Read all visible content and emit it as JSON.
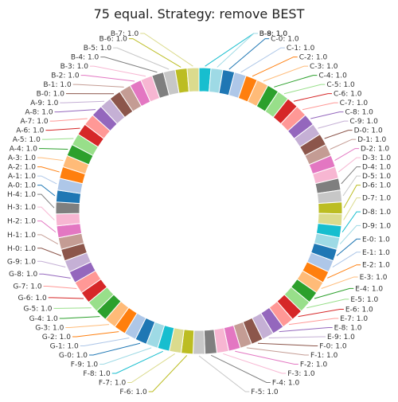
{
  "chart_data": {
    "type": "pie",
    "title": "75 equal. Strategy: remove BEST",
    "hole": true,
    "start": "top",
    "direction": "clockwise",
    "slices": [
      {
        "label": "B-8: 1.0",
        "value": 1.0,
        "color": "#17becf"
      },
      {
        "label": "B-9: 1.0",
        "value": 1.0,
        "color": "#9edae5"
      },
      {
        "label": "C-0: 1.0",
        "value": 1.0,
        "color": "#1f77b4"
      },
      {
        "label": "C-1: 1.0",
        "value": 1.0,
        "color": "#aec7e8"
      },
      {
        "label": "C-2: 1.0",
        "value": 1.0,
        "color": "#ff7f0e"
      },
      {
        "label": "C-3: 1.0",
        "value": 1.0,
        "color": "#ffbb78"
      },
      {
        "label": "C-4: 1.0",
        "value": 1.0,
        "color": "#2ca02c"
      },
      {
        "label": "C-5: 1.0",
        "value": 1.0,
        "color": "#98df8a"
      },
      {
        "label": "C-6: 1.0",
        "value": 1.0,
        "color": "#d62728"
      },
      {
        "label": "C-7: 1.0",
        "value": 1.0,
        "color": "#ff9896"
      },
      {
        "label": "C-8: 1.0",
        "value": 1.0,
        "color": "#9467bd"
      },
      {
        "label": "C-9: 1.0",
        "value": 1.0,
        "color": "#c5b0d5"
      },
      {
        "label": "D-0: 1.0",
        "value": 1.0,
        "color": "#8c564b"
      },
      {
        "label": "D-1: 1.0",
        "value": 1.0,
        "color": "#c49c94"
      },
      {
        "label": "D-2: 1.0",
        "value": 1.0,
        "color": "#e377c2"
      },
      {
        "label": "D-3: 1.0",
        "value": 1.0,
        "color": "#f7b6d2"
      },
      {
        "label": "D-4: 1.0",
        "value": 1.0,
        "color": "#7f7f7f"
      },
      {
        "label": "D-5: 1.0",
        "value": 1.0,
        "color": "#c7c7c7"
      },
      {
        "label": "D-6: 1.0",
        "value": 1.0,
        "color": "#bcbd22"
      },
      {
        "label": "D-7: 1.0",
        "value": 1.0,
        "color": "#dbdb8d"
      },
      {
        "label": "D-8: 1.0",
        "value": 1.0,
        "color": "#17becf"
      },
      {
        "label": "D-9: 1.0",
        "value": 1.0,
        "color": "#9edae5"
      },
      {
        "label": "E-0: 1.0",
        "value": 1.0,
        "color": "#1f77b4"
      },
      {
        "label": "E-1: 1.0",
        "value": 1.0,
        "color": "#aec7e8"
      },
      {
        "label": "E-2: 1.0",
        "value": 1.0,
        "color": "#ff7f0e"
      },
      {
        "label": "E-3: 1.0",
        "value": 1.0,
        "color": "#ffbb78"
      },
      {
        "label": "E-4: 1.0",
        "value": 1.0,
        "color": "#2ca02c"
      },
      {
        "label": "E-5: 1.0",
        "value": 1.0,
        "color": "#98df8a"
      },
      {
        "label": "E-6: 1.0",
        "value": 1.0,
        "color": "#d62728"
      },
      {
        "label": "E-7: 1.0",
        "value": 1.0,
        "color": "#ff9896"
      },
      {
        "label": "E-8: 1.0",
        "value": 1.0,
        "color": "#9467bd"
      },
      {
        "label": "E-9: 1.0",
        "value": 1.0,
        "color": "#c5b0d5"
      },
      {
        "label": "F-0: 1.0",
        "value": 1.0,
        "color": "#8c564b"
      },
      {
        "label": "F-1: 1.0",
        "value": 1.0,
        "color": "#c49c94"
      },
      {
        "label": "F-2: 1.0",
        "value": 1.0,
        "color": "#e377c2"
      },
      {
        "label": "F-3: 1.0",
        "value": 1.0,
        "color": "#f7b6d2"
      },
      {
        "label": "F-4: 1.0",
        "value": 1.0,
        "color": "#7f7f7f"
      },
      {
        "label": "F-5: 1.0",
        "value": 1.0,
        "color": "#c7c7c7"
      },
      {
        "label": "F-6: 1.0",
        "value": 1.0,
        "color": "#bcbd22"
      },
      {
        "label": "F-7: 1.0",
        "value": 1.0,
        "color": "#dbdb8d"
      },
      {
        "label": "F-8: 1.0",
        "value": 1.0,
        "color": "#17becf"
      },
      {
        "label": "F-9: 1.0",
        "value": 1.0,
        "color": "#9edae5"
      },
      {
        "label": "G-0: 1.0",
        "value": 1.0,
        "color": "#1f77b4"
      },
      {
        "label": "G-1: 1.0",
        "value": 1.0,
        "color": "#aec7e8"
      },
      {
        "label": "G-2: 1.0",
        "value": 1.0,
        "color": "#ff7f0e"
      },
      {
        "label": "G-3: 1.0",
        "value": 1.0,
        "color": "#ffbb78"
      },
      {
        "label": "G-4: 1.0",
        "value": 1.0,
        "color": "#2ca02c"
      },
      {
        "label": "G-5: 1.0",
        "value": 1.0,
        "color": "#98df8a"
      },
      {
        "label": "G-6: 1.0",
        "value": 1.0,
        "color": "#d62728"
      },
      {
        "label": "G-7: 1.0",
        "value": 1.0,
        "color": "#ff9896"
      },
      {
        "label": "G-8: 1.0",
        "value": 1.0,
        "color": "#9467bd"
      },
      {
        "label": "G-9: 1.0",
        "value": 1.0,
        "color": "#c5b0d5"
      },
      {
        "label": "H-0: 1.0",
        "value": 1.0,
        "color": "#8c564b"
      },
      {
        "label": "H-1: 1.0",
        "value": 1.0,
        "color": "#c49c94"
      },
      {
        "label": "H-2: 1.0",
        "value": 1.0,
        "color": "#e377c2"
      },
      {
        "label": "H-3: 1.0",
        "value": 1.0,
        "color": "#f7b6d2"
      },
      {
        "label": "H-4: 1.0",
        "value": 1.0,
        "color": "#7f7f7f"
      },
      {
        "label": "A-0: 1.0",
        "value": 1.0,
        "color": "#1f77b4"
      },
      {
        "label": "A-1: 1.0",
        "value": 1.0,
        "color": "#aec7e8"
      },
      {
        "label": "A-2: 1.0",
        "value": 1.0,
        "color": "#ff7f0e"
      },
      {
        "label": "A-3: 1.0",
        "value": 1.0,
        "color": "#ffbb78"
      },
      {
        "label": "A-4: 1.0",
        "value": 1.0,
        "color": "#2ca02c"
      },
      {
        "label": "A-5: 1.0",
        "value": 1.0,
        "color": "#98df8a"
      },
      {
        "label": "A-6: 1.0",
        "value": 1.0,
        "color": "#d62728"
      },
      {
        "label": "A-7: 1.0",
        "value": 1.0,
        "color": "#ff9896"
      },
      {
        "label": "A-8: 1.0",
        "value": 1.0,
        "color": "#9467bd"
      },
      {
        "label": "A-9: 1.0",
        "value": 1.0,
        "color": "#c5b0d5"
      },
      {
        "label": "B-0: 1.0",
        "value": 1.0,
        "color": "#8c564b"
      },
      {
        "label": "B-1: 1.0",
        "value": 1.0,
        "color": "#c49c94"
      },
      {
        "label": "B-2: 1.0",
        "value": 1.0,
        "color": "#e377c2"
      },
      {
        "label": "B-3: 1.0",
        "value": 1.0,
        "color": "#f7b6d2"
      },
      {
        "label": "B-4: 1.0",
        "value": 1.0,
        "color": "#7f7f7f"
      },
      {
        "label": "B-5: 1.0",
        "value": 1.0,
        "color": "#c7c7c7"
      },
      {
        "label": "B-6: 1.0",
        "value": 1.0,
        "color": "#bcbd22"
      },
      {
        "label": "B-7: 1.0",
        "value": 1.0,
        "color": "#dbdb8d"
      }
    ]
  }
}
